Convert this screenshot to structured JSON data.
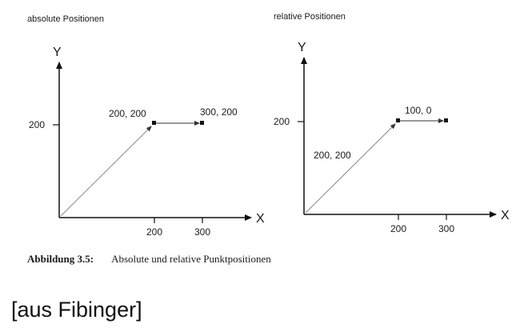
{
  "left_panel": {
    "title": "absolute Positionen",
    "y_axis_label": "Y",
    "x_axis_label": "X",
    "y_tick": "200",
    "x_ticks": [
      "200",
      "300"
    ],
    "point_start_label": "200, 200",
    "point_end_label": "300, 200"
  },
  "right_panel": {
    "title": "relative Positionen",
    "y_axis_label": "Y",
    "x_axis_label": "X",
    "y_tick": "200",
    "x_ticks": [
      "200",
      "300"
    ],
    "diagonal_label": "200, 200",
    "offset_label": "100, 0"
  },
  "caption": {
    "label": "Abbildung 3.5:",
    "text": "Absolute und relative Punktpositionen"
  },
  "source": "[aus Fibinger]"
}
